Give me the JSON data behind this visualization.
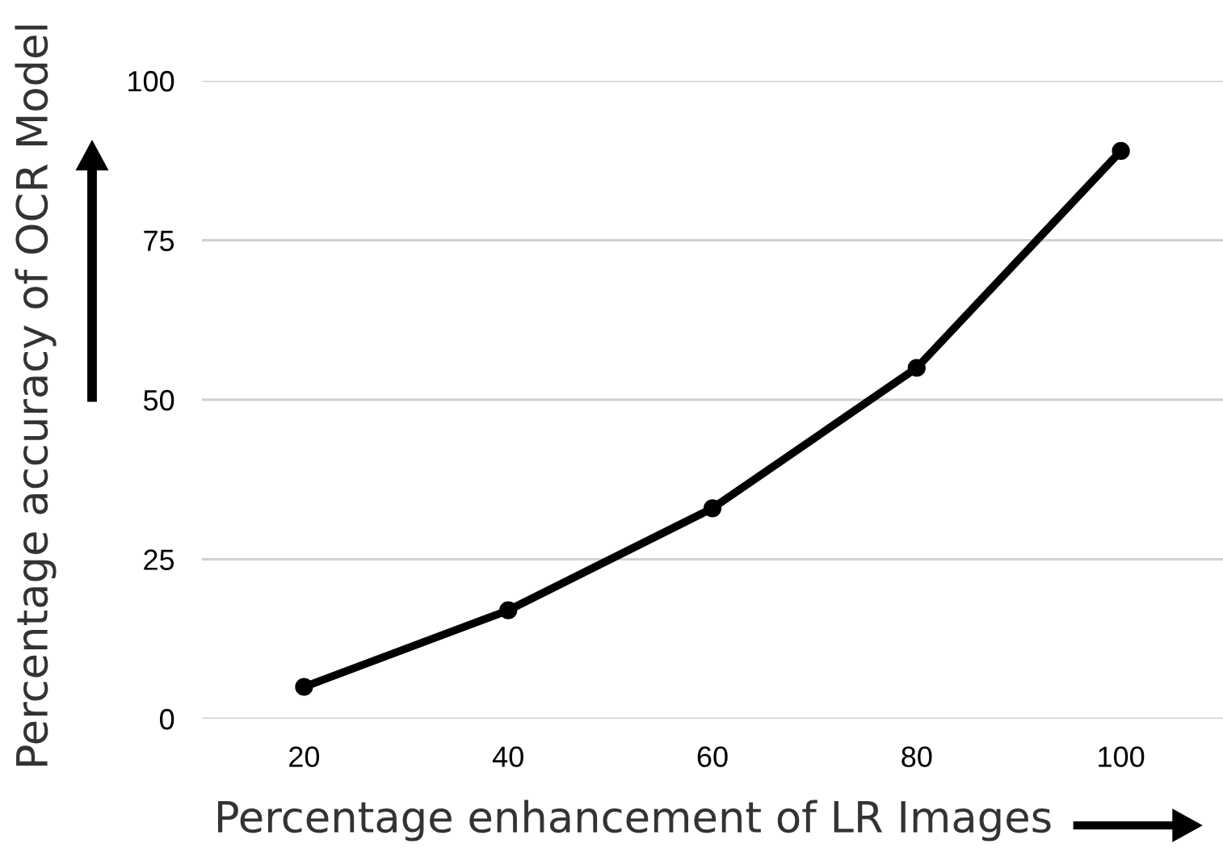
{
  "chart_data": {
    "type": "line",
    "xlabel": "Percentage enhancement of LR Images",
    "ylabel": "Percentage accuracy of OCR Model",
    "categories": [
      "20",
      "40",
      "60",
      "80",
      "100"
    ],
    "series": [
      {
        "color": "#000000",
        "values": [
          5,
          17,
          33,
          55,
          89
        ]
      }
    ],
    "ylim": [
      0,
      100
    ],
    "yticks": [
      0,
      25,
      50,
      75,
      100
    ],
    "grid": "y",
    "marker": "circle",
    "line_style": "solid"
  }
}
